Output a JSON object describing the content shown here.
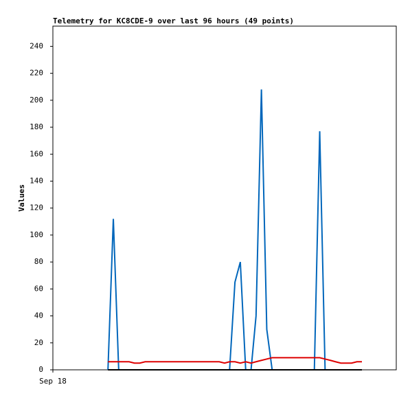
{
  "chart_data": {
    "type": "line",
    "title": "Telemetry for KC8CDE-9 over last 96 hours (49 points)",
    "y_label": "Values",
    "x": [
      15.4,
      16.9,
      18.4,
      19.8,
      21.3,
      22.8,
      24.3,
      25.8,
      27.2,
      28.7,
      30.2,
      31.7,
      33.2,
      34.6,
      36.1,
      37.6,
      39.1,
      40.6,
      42.0,
      43.5,
      45.0,
      46.5,
      48.0,
      49.4,
      50.9,
      52.4,
      53.9,
      55.4,
      56.8,
      58.3,
      59.8,
      61.3,
      62.8,
      64.2,
      65.7,
      67.2,
      68.7,
      70.2,
      71.6,
      73.1,
      74.6,
      76.1,
      77.6,
      79.0,
      80.5,
      82.0,
      83.5,
      85.0,
      86.4
    ],
    "xlim": [
      0,
      96
    ],
    "xticks": [
      {
        "value": 0,
        "label": "Sep 18"
      }
    ],
    "ylim": [
      0,
      255
    ],
    "yticks": [
      0,
      20,
      40,
      60,
      80,
      100,
      120,
      140,
      160,
      180,
      200,
      220,
      240
    ],
    "series": [
      {
        "color": "#0066bb",
        "values": [
          0,
          112,
          0,
          0,
          0,
          0,
          0,
          0,
          0,
          0,
          0,
          0,
          0,
          0,
          0,
          0,
          0,
          0,
          0,
          0,
          0,
          0,
          0,
          0,
          65,
          80,
          0,
          0,
          40,
          208,
          30,
          0,
          0,
          0,
          0,
          0,
          0,
          0,
          0,
          0,
          177,
          0,
          0,
          0,
          0,
          0,
          0,
          0,
          0
        ]
      },
      {
        "color": "#dd0000",
        "values": [
          6,
          6,
          6,
          6,
          6,
          5,
          5,
          6,
          6,
          6,
          6,
          6,
          6,
          6,
          6,
          6,
          6,
          6,
          6,
          6,
          6,
          6,
          5,
          6,
          6,
          5,
          6,
          5,
          6,
          7,
          8,
          9,
          9,
          9,
          9,
          9,
          9,
          9,
          9,
          9,
          9,
          8,
          7,
          6,
          5,
          5,
          5,
          6,
          6
        ]
      },
      {
        "color": "#000000",
        "values": [
          0,
          0,
          0,
          0,
          0,
          0,
          0,
          0,
          0,
          0,
          0,
          0,
          0,
          0,
          0,
          0,
          0,
          0,
          0,
          0,
          0,
          0,
          0,
          0,
          0,
          0,
          0,
          0,
          0,
          0,
          0,
          0,
          0,
          0,
          0,
          0,
          0,
          0,
          0,
          0,
          0,
          0,
          0,
          0,
          0,
          0,
          0,
          0,
          0
        ]
      }
    ]
  }
}
